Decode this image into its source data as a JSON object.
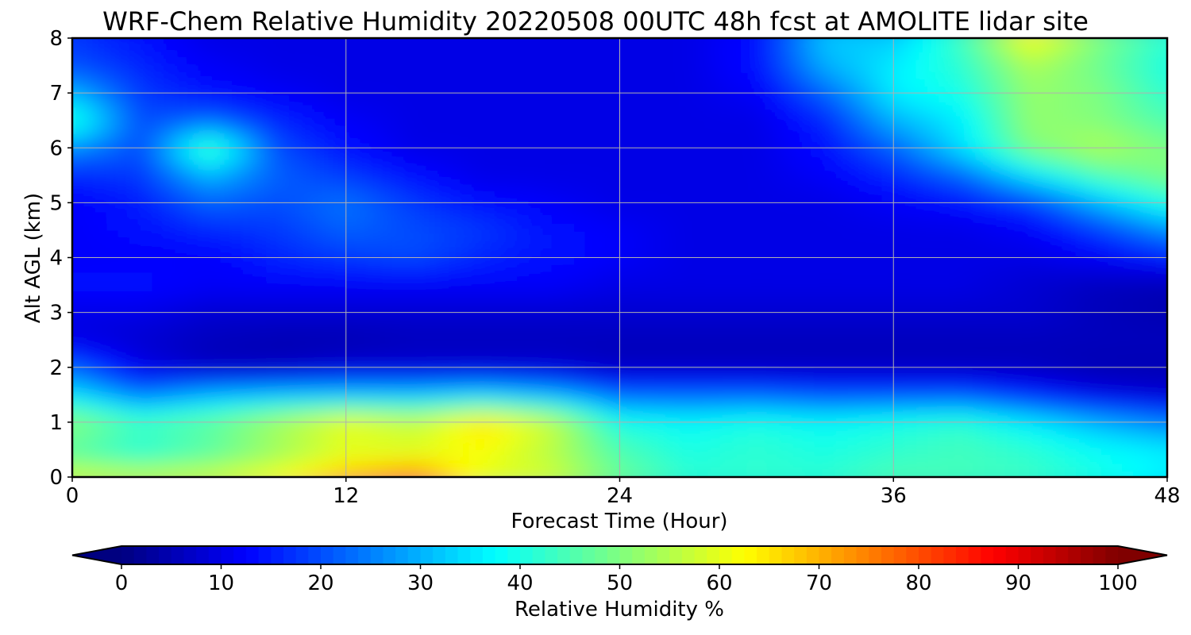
{
  "chart_data": {
    "type": "heatmap",
    "title": "WRF-Chem Relative Humidity 20220508 00UTC 48h fcst at AMOLITE lidar site",
    "xlabel": "Forecast Time (Hour)",
    "ylabel": "Alt AGL (km)",
    "xlim": [
      0,
      48
    ],
    "ylim": [
      0,
      8
    ],
    "x_ticks": [
      0,
      12,
      24,
      36,
      48
    ],
    "y_ticks": [
      0,
      1,
      2,
      3,
      4,
      5,
      6,
      7,
      8
    ],
    "grid": true,
    "colormap": "jet",
    "colorbar": {
      "label": "Relative Humidity %",
      "range": [
        0,
        100
      ],
      "ticks": [
        0,
        10,
        20,
        30,
        40,
        50,
        60,
        70,
        80,
        90,
        100
      ],
      "extend": "both",
      "orientation": "horizontal"
    },
    "x": [
      0,
      3,
      6,
      9,
      12,
      15,
      18,
      21,
      24,
      27,
      30,
      33,
      36,
      39,
      42,
      45,
      48
    ],
    "y": [
      0,
      0.5,
      1,
      1.5,
      2,
      2.5,
      3,
      3.5,
      4,
      4.5,
      5,
      5.5,
      6,
      6.5,
      7,
      7.5,
      8
    ],
    "z": [
      [
        58,
        57,
        58,
        62,
        70,
        75,
        60,
        58,
        48,
        42,
        42,
        42,
        45,
        44,
        43,
        40,
        36
      ],
      [
        45,
        40,
        45,
        52,
        58,
        58,
        62,
        55,
        45,
        40,
        42,
        40,
        42,
        44,
        42,
        38,
        36
      ],
      [
        52,
        45,
        48,
        55,
        62,
        58,
        66,
        58,
        40,
        38,
        40,
        38,
        40,
        42,
        36,
        30,
        25
      ],
      [
        35,
        24,
        30,
        32,
        32,
        32,
        34,
        30,
        22,
        22,
        22,
        20,
        20,
        20,
        15,
        10,
        8
      ],
      [
        22,
        10,
        6,
        6,
        8,
        8,
        8,
        8,
        6,
        6,
        6,
        6,
        6,
        6,
        6,
        5,
        5
      ],
      [
        10,
        8,
        6,
        5,
        5,
        6,
        6,
        6,
        6,
        6,
        6,
        6,
        6,
        6,
        6,
        6,
        6
      ],
      [
        10,
        10,
        8,
        8,
        8,
        8,
        8,
        8,
        8,
        8,
        8,
        8,
        8,
        8,
        8,
        6,
        5
      ],
      [
        14,
        14,
        12,
        12,
        12,
        12,
        12,
        12,
        10,
        10,
        10,
        10,
        10,
        10,
        8,
        6,
        5
      ],
      [
        12,
        12,
        12,
        16,
        18,
        20,
        16,
        14,
        12,
        10,
        10,
        10,
        10,
        10,
        10,
        12,
        15
      ],
      [
        12,
        14,
        16,
        18,
        22,
        20,
        18,
        14,
        12,
        10,
        10,
        10,
        10,
        10,
        12,
        18,
        26
      ],
      [
        12,
        15,
        22,
        20,
        24,
        18,
        14,
        12,
        10,
        10,
        10,
        10,
        12,
        14,
        18,
        30,
        40
      ],
      [
        16,
        18,
        30,
        22,
        18,
        14,
        10,
        10,
        10,
        10,
        10,
        12,
        16,
        22,
        35,
        45,
        50
      ],
      [
        26,
        20,
        46,
        20,
        14,
        10,
        10,
        10,
        10,
        10,
        10,
        14,
        22,
        35,
        50,
        55,
        50
      ],
      [
        42,
        20,
        22,
        16,
        12,
        10,
        10,
        10,
        10,
        10,
        10,
        16,
        30,
        36,
        52,
        50,
        45
      ],
      [
        30,
        18,
        14,
        12,
        10,
        10,
        10,
        10,
        10,
        10,
        12,
        22,
        36,
        40,
        52,
        50,
        42
      ],
      [
        20,
        16,
        12,
        10,
        10,
        10,
        10,
        10,
        10,
        10,
        14,
        30,
        36,
        42,
        54,
        48,
        40
      ],
      [
        18,
        14,
        10,
        10,
        10,
        10,
        10,
        10,
        10,
        10,
        14,
        32,
        32,
        44,
        62,
        50,
        42
      ]
    ]
  }
}
